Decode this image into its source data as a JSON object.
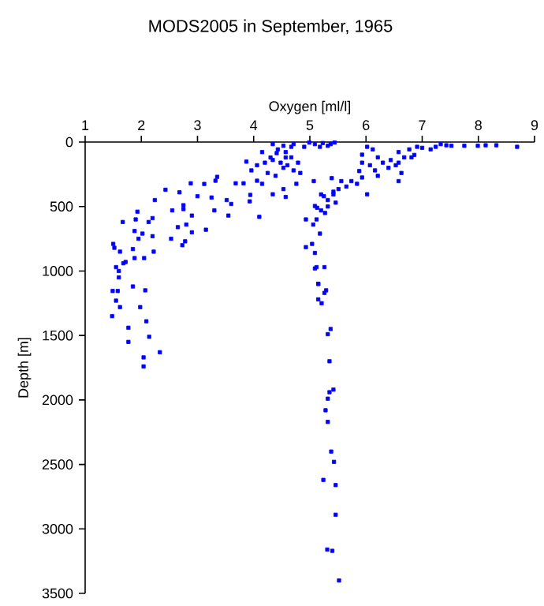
{
  "chart_data": {
    "type": "scatter",
    "title": "MODS2005 in September, 1965",
    "xlabel": "Oxygen [ml/l]",
    "ylabel": "Depth [m]",
    "xlim": [
      1,
      9
    ],
    "xticks": [
      1,
      2,
      3,
      4,
      5,
      6,
      7,
      8,
      9
    ],
    "ylim": [
      3500,
      0
    ],
    "yticks": [
      0,
      500,
      1000,
      1500,
      2000,
      2500,
      3000,
      3500
    ],
    "grid": false,
    "marker": "square",
    "series": [
      {
        "color": "#0000ff",
        "x": [
          3.35,
          3.32,
          3.12,
          2.88,
          2.68,
          2.43,
          2.24,
          3.0,
          3.25,
          3.52,
          3.68,
          3.82,
          3.94,
          3.93,
          4.06,
          3.6,
          2.75,
          2.55,
          1.93,
          2.2,
          2.75,
          2.9,
          3.3,
          3.55,
          4.1,
          1.67,
          1.9,
          2.13,
          1.88,
          2.02,
          2.2,
          2.8,
          2.65,
          2.53,
          2.78,
          2.9,
          3.15,
          1.95,
          2.73,
          1.5,
          1.52,
          1.62,
          1.85,
          2.05,
          2.22,
          1.88,
          1.68,
          1.55,
          1.6,
          1.6,
          1.72,
          1.49,
          1.58,
          1.55,
          1.62,
          1.48,
          1.77,
          1.77,
          1.98,
          2.09,
          2.14,
          2.04,
          2.04,
          2.33,
          1.85,
          2.07,
          5.07,
          5.2,
          5.13,
          5.09,
          5.2,
          5.27,
          5.32,
          5.12,
          4.93,
          5.06,
          5.18,
          5.04,
          4.93,
          5.09,
          5.09,
          5.12,
          5.26,
          5.15,
          5.39,
          5.42,
          5.46,
          5.32,
          5.25,
          5.15,
          5.15,
          5.21,
          5.26,
          5.29,
          5.37,
          5.32,
          5.35,
          5.42,
          5.35,
          5.32,
          5.28,
          5.32,
          5.38,
          5.43,
          5.24,
          5.46,
          5.46,
          5.31,
          5.4,
          5.52,
          4.34,
          4.53,
          4.71,
          4.43,
          4.57,
          4.67,
          4.34,
          4.2,
          3.87,
          4.06,
          3.96,
          4.25,
          4.39,
          4.53,
          4.71,
          4.76,
          4.53,
          4.15,
          4.57,
          4.34,
          4.57,
          4.15,
          4.48,
          4.41,
          4.67,
          4.3,
          4.79,
          4.83,
          4.6,
          4.99,
          5.09,
          5.23,
          5.37,
          5.44,
          4.9,
          5.18,
          5.32,
          6.02,
          6.12,
          5.93,
          6.21,
          5.93,
          6.07,
          6.16,
          6.21,
          6.4,
          6.58,
          6.68,
          6.77,
          6.91,
          7.0,
          6.58,
          6.63,
          6.58,
          6.53,
          6.44,
          6.3,
          5.88,
          5.74,
          5.65,
          5.56,
          5.51,
          5.42,
          6.02,
          5.84,
          5.93,
          6.81,
          6.86,
          7.24,
          7.33,
          7.52,
          7.75,
          7.99,
          8.13,
          8.32,
          8.69,
          7.15,
          7.43
        ],
        "values": [
          270,
          300,
          325,
          320,
          390,
          370,
          450,
          420,
          430,
          450,
          320,
          320,
          410,
          460,
          300,
          480,
          490,
          530,
          540,
          590,
          520,
          570,
          530,
          570,
          580,
          620,
          600,
          620,
          690,
          710,
          730,
          640,
          660,
          750,
          770,
          700,
          680,
          750,
          800,
          790,
          820,
          850,
          830,
          900,
          850,
          900,
          940,
          970,
          1000,
          1050,
          930,
          1155,
          1155,
          1230,
          1280,
          1350,
          1440,
          1550,
          1280,
          1390,
          1510,
          1670,
          1740,
          1630,
          1120,
          1150,
          303,
          406,
          510,
          496,
          530,
          550,
          500,
          600,
          600,
          640,
          710,
          790,
          815,
          860,
          980,
          970,
          970,
          1100,
          280,
          406,
          470,
          450,
          420,
          1100,
          1220,
          1250,
          1170,
          1150,
          1450,
          1490,
          1700,
          1920,
          1940,
          1990,
          2080,
          2170,
          2400,
          2480,
          2620,
          2660,
          2890,
          3160,
          3170,
          3400,
          16,
          29,
          16,
          57,
          78,
          119,
          139,
          160,
          152,
          180,
          220,
          240,
          262,
          200,
          220,
          324,
          365,
          324,
          426,
          405,
          120,
          78,
          160,
          86,
          37,
          120,
          160,
          240,
          180,
          4,
          16,
          8,
          16,
          4,
          37,
          37,
          29,
          37,
          57,
          98,
          119,
          160,
          180,
          220,
          262,
          200,
          78,
          119,
          57,
          37,
          45,
          160,
          240,
          303,
          180,
          140,
          160,
          225,
          303,
          345,
          303,
          365,
          385,
          405,
          324,
          275,
          119,
          100,
          37,
          16,
          29,
          29,
          29,
          25,
          25,
          37,
          57,
          25
        ]
      }
    ]
  }
}
